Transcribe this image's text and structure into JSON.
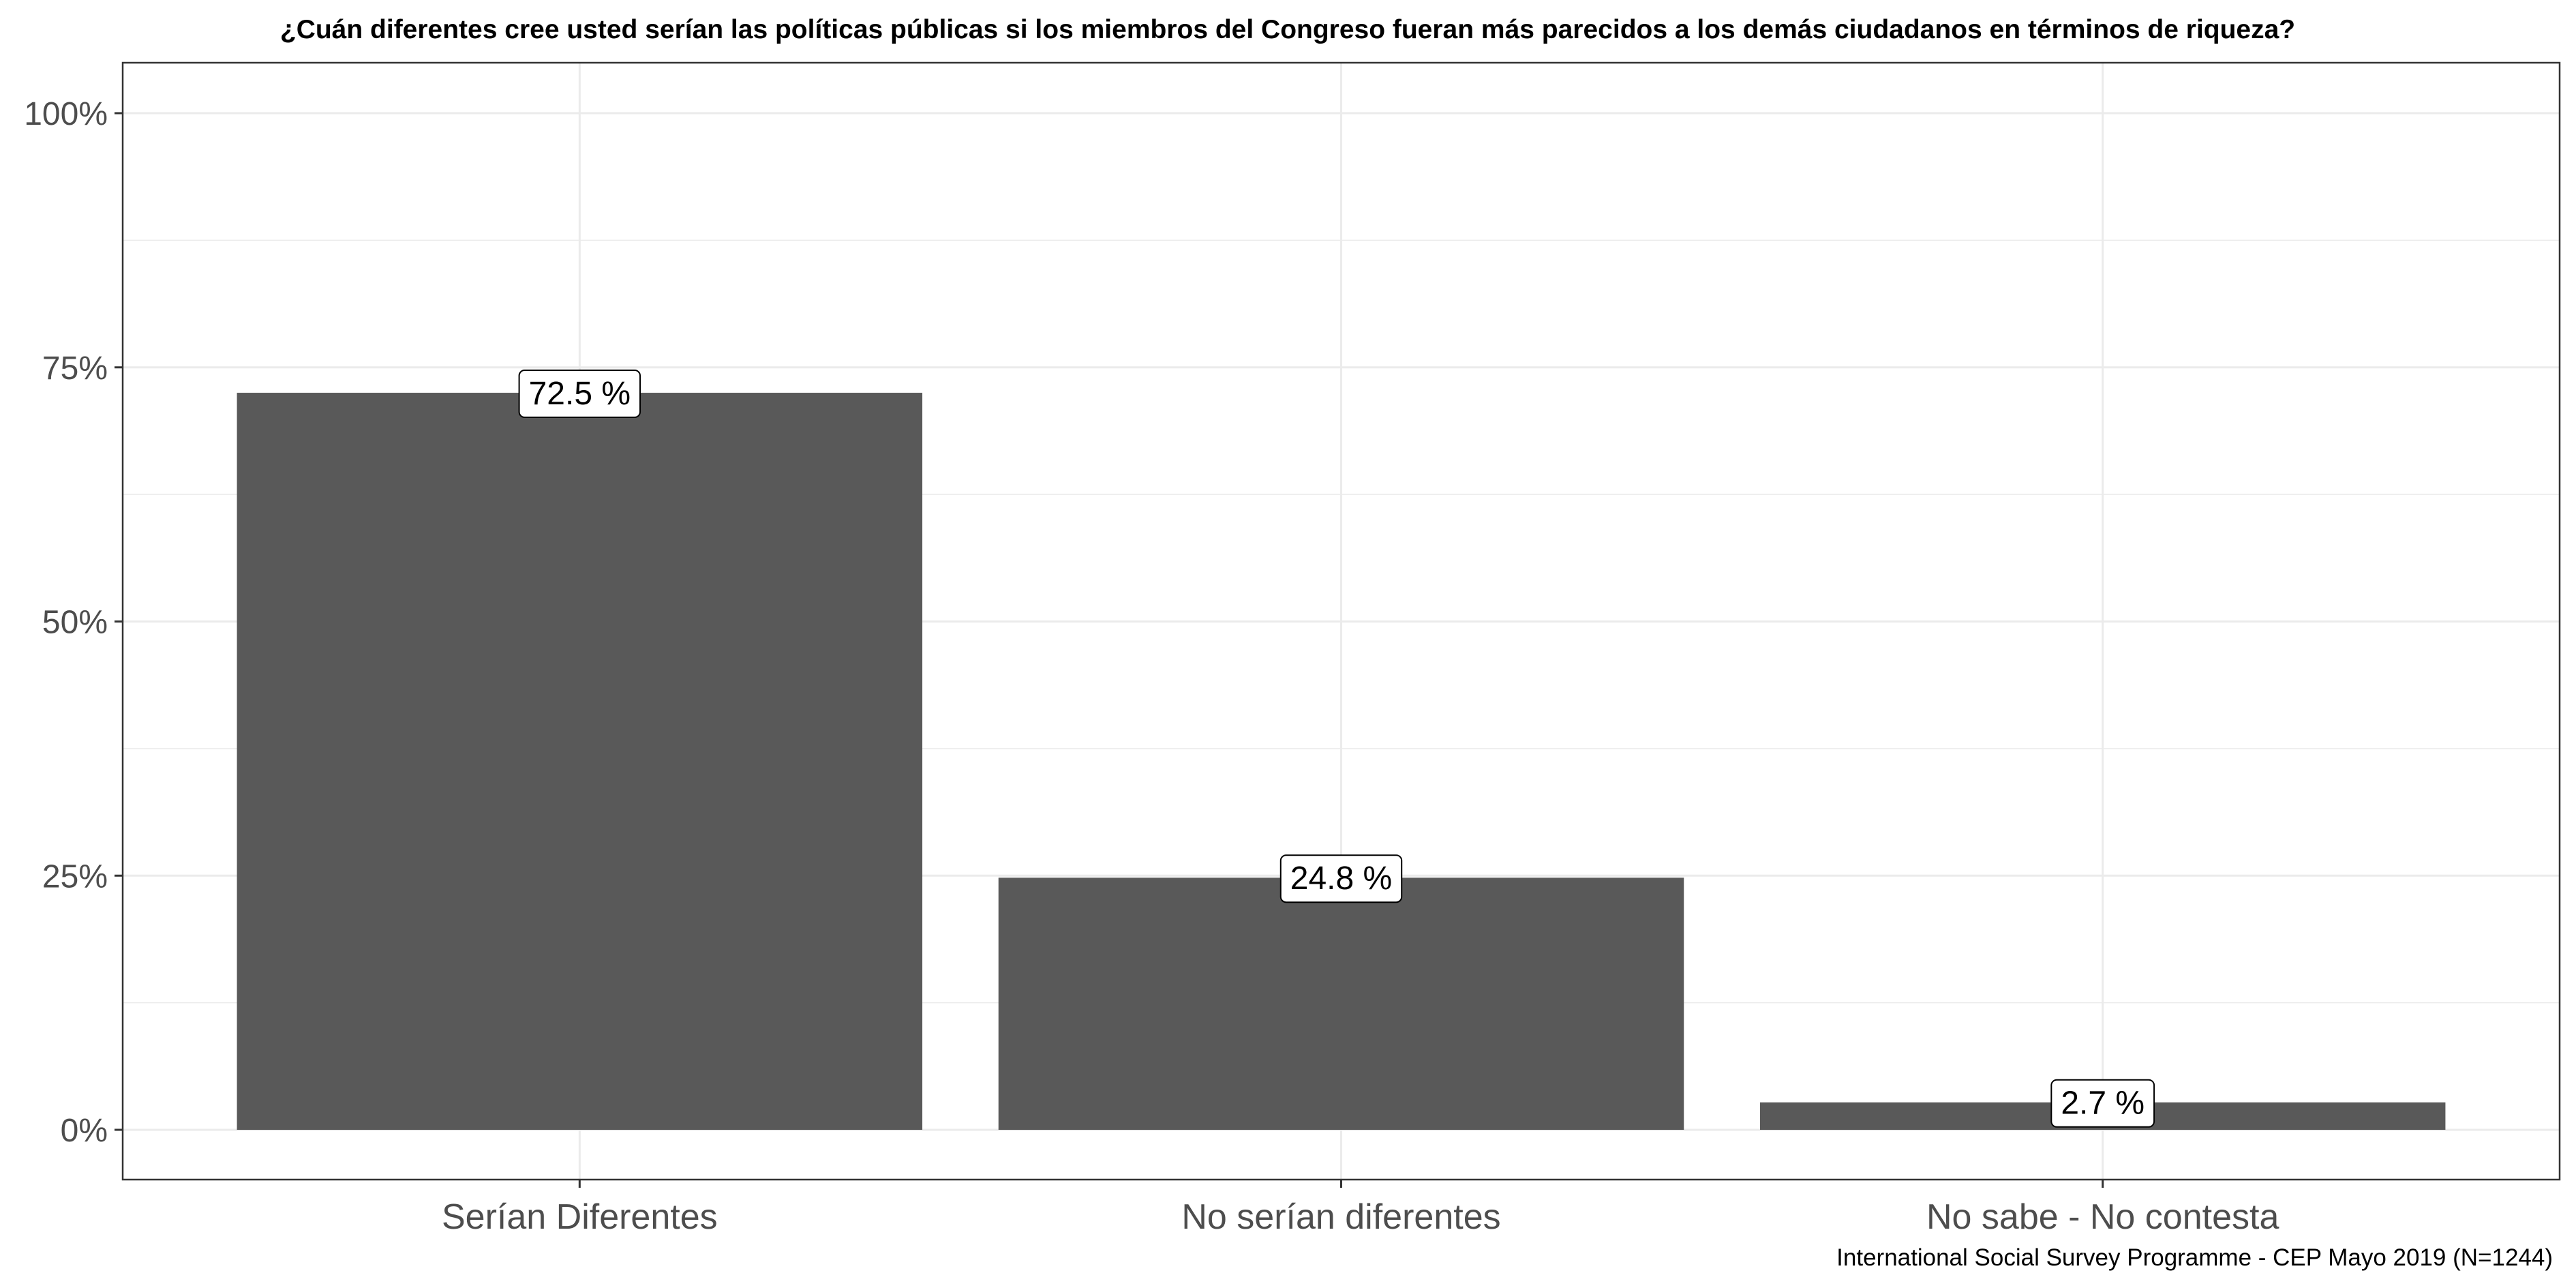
{
  "chart_data": {
    "type": "bar",
    "title": "¿Cuán diferentes cree usted serían las políticas públicas si los miembros del Congreso fueran más parecidos a los demás ciudadanos en términos de riqueza?",
    "categories": [
      "Serían Diferentes",
      "No serían diferentes",
      "No sabe - No contesta"
    ],
    "values": [
      72.5,
      24.8,
      2.7
    ],
    "data_labels": [
      "72.5 %",
      "24.8 %",
      "2.7 %"
    ],
    "xlabel": "",
    "ylabel": "",
    "ylim": [
      0,
      100
    ],
    "yticks": [
      0,
      25,
      50,
      75,
      100
    ],
    "ytick_labels": [
      "0%",
      "25%",
      "50%",
      "75%",
      "100%"
    ],
    "grid": true,
    "legend": "none",
    "caption": "International Social Survey Programme - CEP Mayo 2019 (N=1244)",
    "colors": {
      "bar": "#595959",
      "grid": "#ebebeb",
      "panel_border": "#333333",
      "label_fill": "#ffffff",
      "label_border": "#000000"
    }
  }
}
